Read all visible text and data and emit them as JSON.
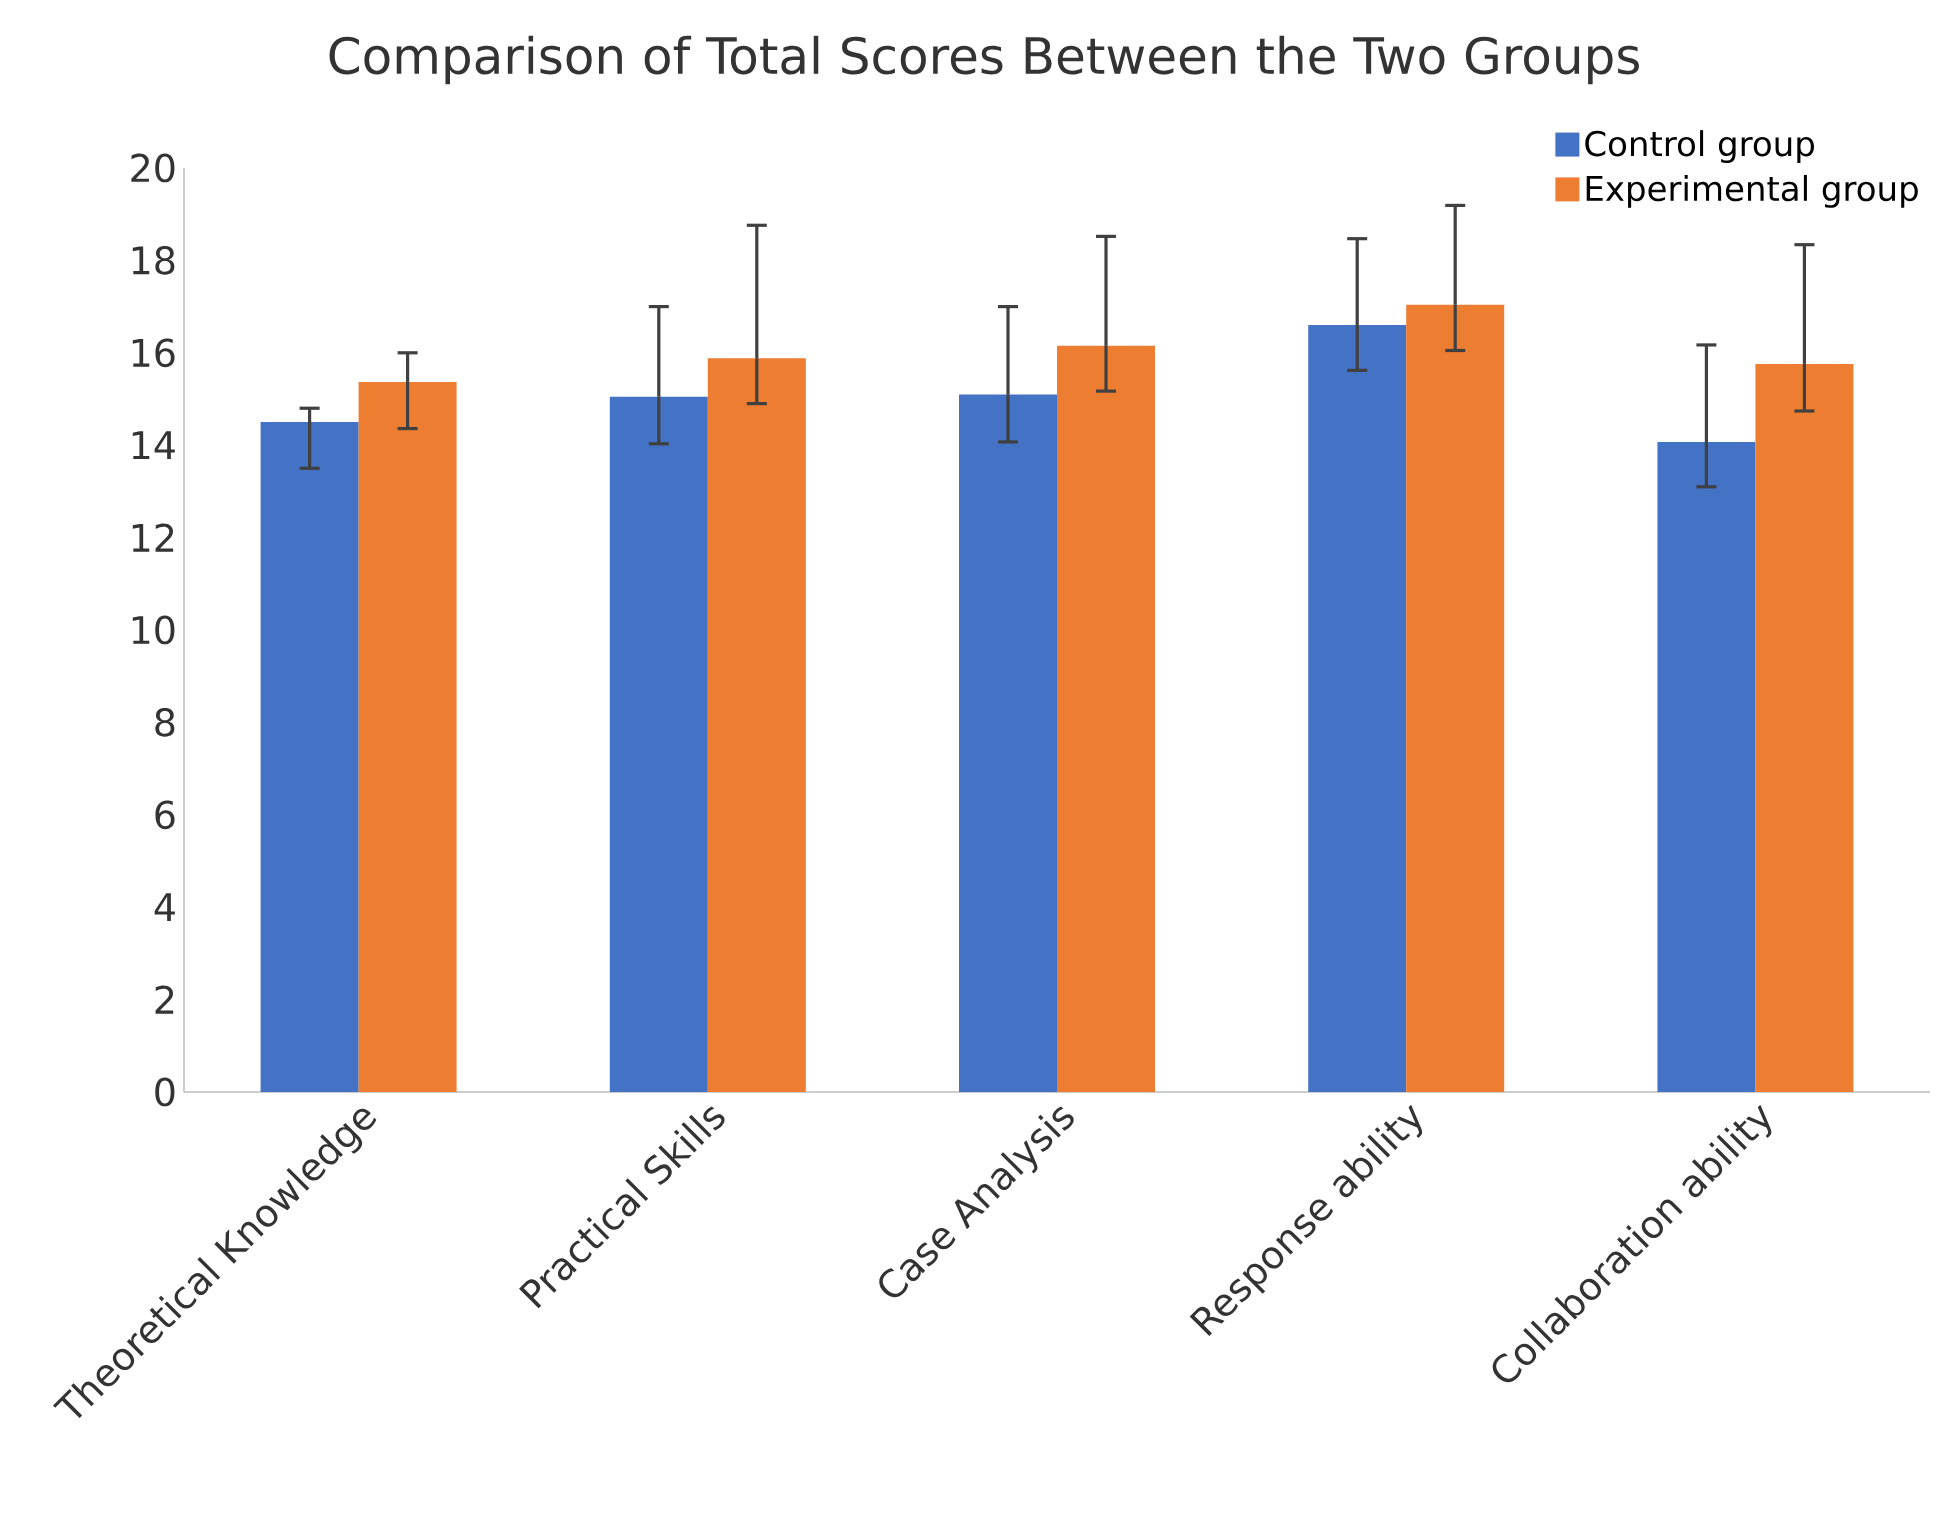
{
  "chart_data": {
    "type": "bar",
    "title": "Comparison of Total Scores Between the Two Groups",
    "categories": [
      "Theoretical Knowledge",
      "Practical Skills",
      "Case Analysis",
      "Response ability",
      "Collaboration ability"
    ],
    "series": [
      {
        "name": "Control group",
        "color": "#4472c4",
        "values": [
          14.5,
          15.05,
          15.1,
          16.6,
          14.07
        ],
        "errors": [
          [
            13.5,
            14.8
          ],
          [
            14.03,
            17.0
          ],
          [
            14.07,
            17.0
          ],
          [
            15.62,
            18.47
          ],
          [
            13.1,
            16.17
          ]
        ]
      },
      {
        "name": "Experimental group",
        "color": "#ed7d31",
        "values": [
          15.37,
          15.88,
          16.15,
          17.04,
          15.76
        ],
        "errors": [
          [
            14.36,
            16.0
          ],
          [
            14.9,
            18.76
          ],
          [
            15.17,
            18.52
          ],
          [
            16.05,
            19.19
          ],
          [
            14.74,
            18.34
          ]
        ]
      }
    ],
    "ylim": [
      0,
      20
    ],
    "yticks": [
      0,
      2,
      4,
      6,
      8,
      10,
      12,
      14,
      16,
      18,
      20
    ],
    "legend": "top right"
  }
}
